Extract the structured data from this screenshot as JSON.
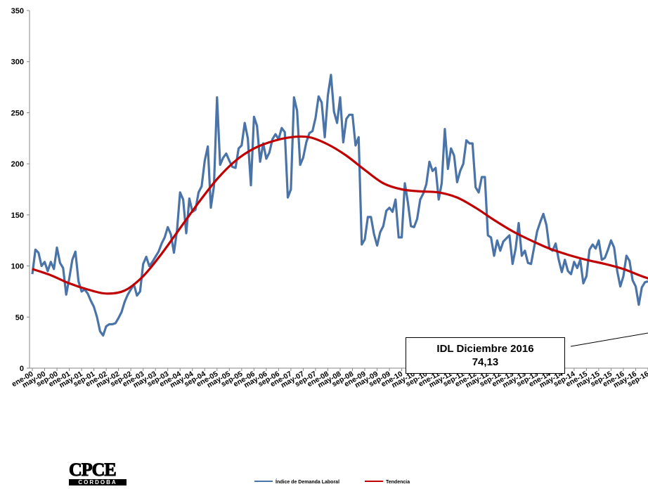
{
  "chart_data": {
    "type": "line",
    "title": "",
    "xlabel": "",
    "ylabel": "",
    "ylim": [
      0,
      350
    ],
    "yticks": [
      "0",
      "50",
      "100",
      "150",
      "200",
      "250",
      "300",
      "350"
    ],
    "grid": false,
    "legend_position": "bottom",
    "x_tick_labels": [
      "ene-00",
      "may-00",
      "sep-00",
      "ene-01",
      "may-01",
      "sep-01",
      "ene-02",
      "may-02",
      "sep-02",
      "ene-03",
      "may-03",
      "sep-03",
      "ene-04",
      "may-04",
      "sep-04",
      "ene-05",
      "may-05",
      "sep-05",
      "ene-06",
      "may-06",
      "sep-06",
      "ene-07",
      "may-07",
      "sep-07",
      "ene-08",
      "may-08",
      "sep-08",
      "ene-09",
      "may-09",
      "sep-09",
      "ene-10",
      "may-10",
      "sep-10",
      "ene-11",
      "may-11",
      "sep-11",
      "ene-12",
      "may-12",
      "sep-12",
      "ene-13",
      "may-13",
      "sep-13",
      "ene-14",
      "may-14",
      "sep-14",
      "ene-15",
      "may-15",
      "sep-15",
      "ene-16",
      "may-16",
      "sep-16"
    ],
    "series": [
      {
        "name": "Índice de Demanda Laboral",
        "color": "#4a73a8",
        "values": [
          92,
          116,
          113,
          100,
          104,
          95,
          104,
          97,
          118,
          103,
          98,
          72,
          88,
          106,
          114,
          85,
          75,
          77,
          73,
          66,
          60,
          50,
          36,
          32,
          41,
          43,
          43,
          44,
          49,
          55,
          65,
          72,
          77,
          82,
          71,
          75,
          102,
          109,
          100,
          104,
          109,
          114,
          122,
          128,
          138,
          131,
          113,
          135,
          172,
          165,
          132,
          166,
          153,
          155,
          172,
          178,
          203,
          217,
          157,
          178,
          265,
          199,
          206,
          210,
          203,
          197,
          196,
          215,
          218,
          240,
          225,
          179,
          246,
          237,
          202,
          220,
          205,
          211,
          224,
          229,
          224,
          235,
          231,
          167,
          175,
          265,
          252,
          199,
          206,
          221,
          230,
          232,
          245,
          266,
          260,
          226,
          267,
          287,
          251,
          240,
          265,
          221,
          244,
          248,
          248,
          218,
          226,
          121,
          126,
          148,
          148,
          131,
          120,
          133,
          139,
          154,
          157,
          153,
          165,
          128,
          128,
          181,
          162,
          139,
          138,
          146,
          165,
          171,
          180,
          202,
          193,
          196,
          165,
          181,
          234,
          195,
          215,
          208,
          182,
          193,
          200,
          223,
          220,
          220,
          177,
          172,
          187,
          187,
          130,
          128,
          110,
          125,
          115,
          124,
          127,
          130,
          102,
          117,
          142,
          110,
          115,
          103,
          102,
          118,
          134,
          143,
          151,
          140,
          117,
          115,
          122,
          106,
          94,
          106,
          95,
          92,
          104,
          98,
          106,
          83,
          90,
          116,
          121,
          117,
          125,
          106,
          108,
          116,
          125,
          118,
          95,
          80,
          90,
          110,
          105,
          86,
          80,
          62,
          79,
          84,
          85
        ]
      },
      {
        "name": "Tendencia",
        "color": "#c00000",
        "points": [
          [
            0,
            97
          ],
          [
            6,
            91
          ],
          [
            12,
            83
          ],
          [
            18,
            77
          ],
          [
            24,
            73
          ],
          [
            30,
            76
          ],
          [
            36,
            90
          ],
          [
            42,
            112
          ],
          [
            48,
            137
          ],
          [
            54,
            162
          ],
          [
            60,
            185
          ],
          [
            66,
            203
          ],
          [
            72,
            215
          ],
          [
            78,
            222
          ],
          [
            84,
            226
          ],
          [
            90,
            226
          ],
          [
            96,
            219
          ],
          [
            102,
            208
          ],
          [
            108,
            194
          ],
          [
            114,
            181
          ],
          [
            120,
            175
          ],
          [
            126,
            173
          ],
          [
            132,
            172
          ],
          [
            138,
            167
          ],
          [
            144,
            157
          ],
          [
            150,
            145
          ],
          [
            156,
            134
          ],
          [
            162,
            125
          ],
          [
            168,
            117
          ],
          [
            174,
            111
          ],
          [
            180,
            106
          ],
          [
            186,
            102
          ],
          [
            192,
            97
          ],
          [
            198,
            90
          ],
          [
            204,
            84
          ],
          [
            209,
            79
          ]
        ]
      }
    ],
    "annotation": {
      "line1": "IDL Diciembre 2016",
      "line2": "74,13"
    }
  },
  "logo": {
    "mark": "CPCE",
    "sub": "CORDOBA"
  }
}
